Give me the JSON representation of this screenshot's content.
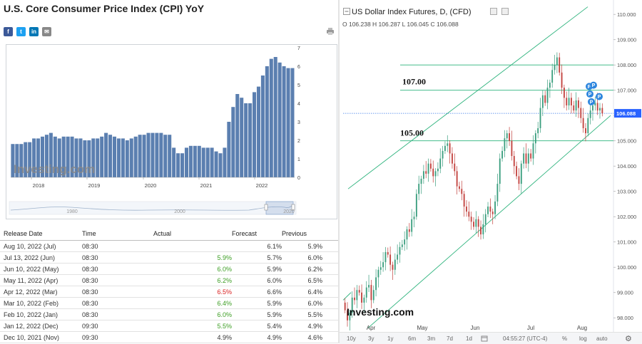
{
  "left": {
    "title": "U.S. Core Consumer Price Index (CPI) YoY",
    "share_icons": [
      {
        "name": "facebook-share-icon",
        "glyph": "f",
        "color": "#3b5998"
      },
      {
        "name": "twitter-share-icon",
        "glyph": "t",
        "color": "#1da1f2"
      },
      {
        "name": "linkedin-share-icon",
        "glyph": "in",
        "color": "#0077b5"
      },
      {
        "name": "email-share-icon",
        "glyph": "✉",
        "color": "#888888"
      }
    ],
    "print_icon": "printer-icon",
    "watermark": "Investing.com",
    "bar_color": "#5b7fb0",
    "navigator_years": [
      "1980",
      "2000",
      "2020"
    ]
  },
  "chart_data": [
    {
      "type": "bar",
      "title": "",
      "xlabel": "",
      "ylabel": "",
      "ylim": [
        0,
        7
      ],
      "yticks": [
        "0",
        "1",
        "2",
        "3",
        "4",
        "5",
        "6",
        "7"
      ],
      "x_tick_labels": [
        "2018",
        "2019",
        "2020",
        "2021",
        "2022"
      ],
      "values": [
        1.8,
        1.8,
        1.8,
        1.9,
        1.9,
        2.1,
        2.1,
        2.2,
        2.3,
        2.4,
        2.2,
        2.1,
        2.2,
        2.2,
        2.2,
        2.1,
        2.1,
        2.0,
        2.0,
        2.1,
        2.1,
        2.2,
        2.4,
        2.3,
        2.2,
        2.1,
        2.1,
        2.0,
        2.1,
        2.2,
        2.3,
        2.3,
        2.4,
        2.4,
        2.4,
        2.4,
        2.3,
        2.3,
        1.6,
        1.3,
        1.3,
        1.6,
        1.7,
        1.7,
        1.7,
        1.6,
        1.6,
        1.6,
        1.4,
        1.3,
        1.6,
        3.0,
        3.8,
        4.5,
        4.3,
        4.0,
        4.0,
        4.6,
        4.9,
        5.5,
        6.0,
        6.4,
        6.5,
        6.2,
        6.0,
        5.9,
        5.9
      ]
    },
    {
      "type": "candlestick",
      "title": "US Dollar Index Futures, D, (CFD)",
      "ohlc_text": "O 106.238 H 106.287 L 106.045 C 106.088",
      "ylim": [
        97.5,
        110.4
      ],
      "yticks": [
        "98.000",
        "99.000",
        "100.000",
        "101.000",
        "102.000",
        "103.000",
        "104.000",
        "105.000",
        "106.000",
        "107.000",
        "108.000",
        "109.000",
        "110.000"
      ],
      "x_tick_labels": [
        "Apr",
        "May",
        "Jun",
        "Jul",
        "Aug"
      ],
      "current_price": "106.088",
      "current_price_value": 106.088,
      "up_color": "#3a9e7e",
      "down_color": "#c2413d",
      "channel_color": "#2ab27b",
      "horizontal_levels": [
        107.0,
        105.0,
        108.0
      ],
      "level_labels": [
        "107.00",
        "105.00"
      ],
      "closes": [
        98.3,
        97.9,
        98.2,
        98.8,
        98.7,
        99.1,
        99.0,
        98.6,
        98.8,
        99.2,
        99.3,
        98.7,
        99.1,
        99.6,
        99.9,
        100.0,
        100.2,
        100.6,
        100.5,
        100.1,
        99.9,
        100.3,
        100.5,
        100.8,
        100.9,
        101.1,
        101.5,
        101.4,
        101.9,
        102.0,
        102.9,
        103.3,
        103.5,
        103.8,
        103.7,
        104.1,
        103.9,
        103.6,
        103.8,
        103.9,
        104.3,
        104.6,
        104.8,
        104.9,
        104.5,
        104.1,
        103.8,
        103.2,
        103.1,
        102.9,
        102.4,
        102.2,
        102.0,
        101.8,
        101.6,
        101.9,
        101.6,
        101.3,
        101.7,
        102.1,
        102.4,
        102.2,
        102.1,
        102.6,
        103.3,
        104.3,
        104.6,
        105.1,
        105.3,
        105.0,
        104.4,
        104.0,
        103.6,
        103.3,
        104.1,
        104.5,
        104.1,
        104.5,
        104.3,
        104.9,
        105.3,
        105.5,
        106.3,
        106.8,
        106.5,
        107.1,
        107.3,
        107.8,
        108.0,
        108.3,
        107.7,
        107.1,
        106.7,
        106.4,
        106.7,
        106.4,
        106.2,
        106.6,
        106.3,
        105.9,
        105.5,
        105.3,
        105.9,
        106.2,
        106.4,
        106.5,
        106.2,
        106.3,
        106.088
      ],
      "markers": [
        "P",
        "P",
        "P",
        "P",
        "P"
      ]
    }
  ],
  "table": {
    "headers": {
      "date": "Release Date",
      "time": "Time",
      "actual": "Actual",
      "forecast": "Forecast",
      "previous": "Previous"
    },
    "rows": [
      {
        "date": "Aug 10, 2022 (Jul)",
        "time": "08:30",
        "actual": "",
        "actual_color": "#333333",
        "forecast": "6.1%",
        "previous": "5.9%"
      },
      {
        "date": "Jul 13, 2022 (Jun)",
        "time": "08:30",
        "actual": "5.9%",
        "actual_color": "#3c9e23",
        "forecast": "5.7%",
        "previous": "6.0%"
      },
      {
        "date": "Jun 10, 2022 (May)",
        "time": "08:30",
        "actual": "6.0%",
        "actual_color": "#3c9e23",
        "forecast": "5.9%",
        "previous": "6.2%"
      },
      {
        "date": "May 11, 2022 (Apr)",
        "time": "08:30",
        "actual": "6.2%",
        "actual_color": "#3c9e23",
        "forecast": "6.0%",
        "previous": "6.5%"
      },
      {
        "date": "Apr 12, 2022 (Mar)",
        "time": "08:30",
        "actual": "6.5%",
        "actual_color": "#d91f1f",
        "forecast": "6.6%",
        "previous": "6.4%"
      },
      {
        "date": "Mar 10, 2022 (Feb)",
        "time": "08:30",
        "actual": "6.4%",
        "actual_color": "#3c9e23",
        "forecast": "5.9%",
        "previous": "6.0%"
      },
      {
        "date": "Feb 10, 2022 (Jan)",
        "time": "08:30",
        "actual": "6.0%",
        "actual_color": "#3c9e23",
        "forecast": "5.9%",
        "previous": "5.5%"
      },
      {
        "date": "Jan 12, 2022 (Dec)",
        "time": "09:30",
        "actual": "5.5%",
        "actual_color": "#3c9e23",
        "forecast": "5.4%",
        "previous": "4.9%"
      },
      {
        "date": "Dec 10, 2021 (Nov)",
        "time": "09:30",
        "actual": "4.9%",
        "actual_color": "#333333",
        "forecast": "4.9%",
        "previous": "4.6%"
      }
    ]
  },
  "right": {
    "collapse_icon": "collapse-icon",
    "header_buttons": [
      "maximize-icon",
      "close-icon"
    ],
    "watermark": "Investing.com",
    "timeframes": [
      "10y",
      "3y",
      "1y",
      "6m",
      "3m",
      "7d",
      "1d"
    ],
    "clock": "04:55:27 (UTC-4)",
    "bottom_options": [
      "%",
      "log",
      "auto"
    ],
    "settings_icon": "gear-icon"
  }
}
